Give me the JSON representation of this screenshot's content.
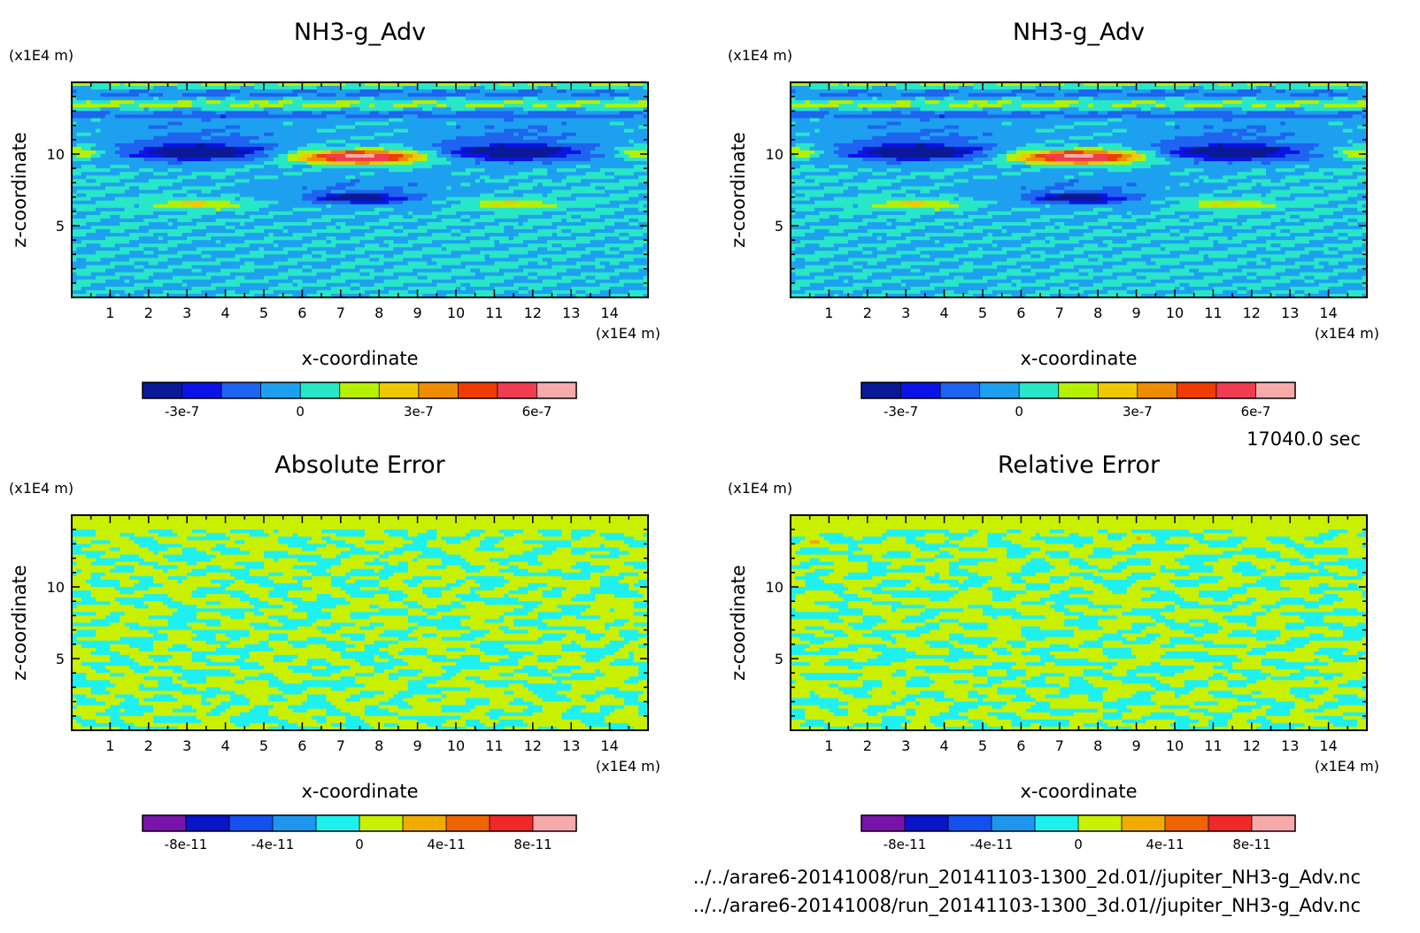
{
  "figure": {
    "time_label": "17040.0 sec",
    "files": [
      "../../arare6-20141008/run_20141103-1300_2d.01//jupiter_NH3-g_Adv.nc",
      "../../arare6-20141008/run_20141103-1300_3d.01//jupiter_NH3-g_Adv.nc"
    ]
  },
  "chart_data": [
    {
      "type": "heatmap",
      "title": "NH3-g_Adv",
      "xlabel": "x-coordinate",
      "ylabel": "z-coordinate",
      "x_unit": "(x1E4 m)",
      "y_unit": "(x1E4 m)",
      "xlim": [
        0,
        15
      ],
      "ylim": [
        0,
        15
      ],
      "x_ticks": [
        1,
        2,
        3,
        4,
        5,
        6,
        7,
        8,
        9,
        10,
        11,
        12,
        13,
        14
      ],
      "y_ticks": [
        5,
        10
      ],
      "pattern": "field",
      "colorbar": {
        "levels": [
          -4e-07,
          -3e-07,
          -2e-07,
          -1e-07,
          0,
          1e-07,
          2e-07,
          3e-07,
          4e-07,
          5e-07,
          6e-07,
          7e-07
        ],
        "colors": [
          "#0a1a96",
          "#0a14e6",
          "#1e64f0",
          "#1ea0f0",
          "#28e6c8",
          "#b4f000",
          "#f0c800",
          "#f08c00",
          "#f03c00",
          "#f03c50",
          "#f8aaaa"
        ],
        "tick_values": [
          -3e-07,
          0,
          3e-07,
          6e-07
        ],
        "tick_labels": [
          "-3e-7",
          "0",
          "3e-7",
          "6e-7"
        ]
      }
    },
    {
      "type": "heatmap",
      "title": "NH3-g_Adv",
      "xlabel": "x-coordinate",
      "ylabel": "z-coordinate",
      "x_unit": "(x1E4 m)",
      "y_unit": "(x1E4 m)",
      "xlim": [
        0,
        15
      ],
      "ylim": [
        0,
        15
      ],
      "x_ticks": [
        1,
        2,
        3,
        4,
        5,
        6,
        7,
        8,
        9,
        10,
        11,
        12,
        13,
        14
      ],
      "y_ticks": [
        5,
        10
      ],
      "pattern": "field",
      "colorbar": {
        "levels": [
          -4e-07,
          -3e-07,
          -2e-07,
          -1e-07,
          0,
          1e-07,
          2e-07,
          3e-07,
          4e-07,
          5e-07,
          6e-07,
          7e-07
        ],
        "colors": [
          "#0a1a96",
          "#0a14e6",
          "#1e64f0",
          "#1ea0f0",
          "#28e6c8",
          "#b4f000",
          "#f0c800",
          "#f08c00",
          "#f03c00",
          "#f03c50",
          "#f8aaaa"
        ],
        "tick_values": [
          -3e-07,
          0,
          3e-07,
          6e-07
        ],
        "tick_labels": [
          "-3e-7",
          "0",
          "3e-7",
          "6e-7"
        ]
      }
    },
    {
      "type": "heatmap",
      "title": "Absolute Error",
      "xlabel": "x-coordinate",
      "ylabel": "z-coordinate",
      "x_unit": "(x1E4 m)",
      "y_unit": "(x1E4 m)",
      "xlim": [
        0,
        15
      ],
      "ylim": [
        0,
        15
      ],
      "x_ticks": [
        1,
        2,
        3,
        4,
        5,
        6,
        7,
        8,
        9,
        10,
        11,
        12,
        13,
        14
      ],
      "y_ticks": [
        5,
        10
      ],
      "pattern": "noise",
      "noise_seed": 7,
      "colorbar": {
        "levels": [
          -1e-10,
          -8e-11,
          -6e-11,
          -4e-11,
          -2e-11,
          0,
          2e-11,
          4e-11,
          6e-11,
          8e-11,
          1e-10
        ],
        "colors": [
          "#7814aa",
          "#0a14c8",
          "#1450f0",
          "#1e96f0",
          "#1ef0f0",
          "#c8f000",
          "#f0aa00",
          "#f06400",
          "#f02828",
          "#f8aaaa"
        ],
        "tick_values": [
          -8e-11,
          -4e-11,
          0,
          4e-11,
          8e-11
        ],
        "tick_labels": [
          "-8e-11",
          "-4e-11",
          "0",
          "4e-11",
          "8e-11"
        ]
      }
    },
    {
      "type": "heatmap",
      "title": "Relative Error",
      "xlabel": "x-coordinate",
      "ylabel": "z-coordinate",
      "x_unit": "(x1E4 m)",
      "y_unit": "(x1E4 m)",
      "xlim": [
        0,
        15
      ],
      "ylim": [
        0,
        15
      ],
      "x_ticks": [
        1,
        2,
        3,
        4,
        5,
        6,
        7,
        8,
        9,
        10,
        11,
        12,
        13,
        14
      ],
      "y_ticks": [
        5,
        10
      ],
      "pattern": "noise",
      "noise_seed": 23,
      "colorbar": {
        "levels": [
          -1e-10,
          -8e-11,
          -6e-11,
          -4e-11,
          -2e-11,
          0,
          2e-11,
          4e-11,
          6e-11,
          8e-11,
          1e-10
        ],
        "colors": [
          "#7814aa",
          "#0a14c8",
          "#1450f0",
          "#1e96f0",
          "#1ef0f0",
          "#c8f000",
          "#f0aa00",
          "#f06400",
          "#f02828",
          "#f8aaaa"
        ],
        "tick_values": [
          -8e-11,
          -4e-11,
          0,
          4e-11,
          8e-11
        ],
        "tick_labels": [
          "-8e-11",
          "-4e-11",
          "0",
          "4e-11",
          "8e-11"
        ]
      }
    }
  ]
}
